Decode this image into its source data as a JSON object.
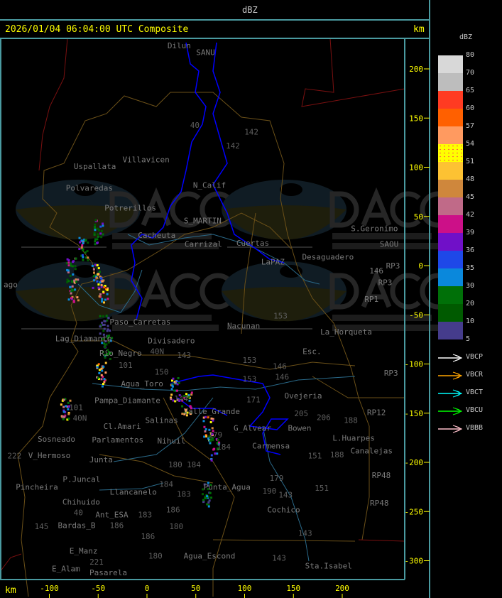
{
  "header": {
    "units_label": "dBZ"
  },
  "title": {
    "text": "2026/01/04 06:04:00 UTC Composite",
    "km_label": "km"
  },
  "x_axis": {
    "label": "km",
    "ticks": [
      -100,
      -50,
      0,
      50,
      100,
      150,
      200
    ]
  },
  "y_axis": {
    "label": "km",
    "ticks": [
      200,
      150,
      100,
      50,
      0,
      -50,
      -100,
      -150,
      -200,
      -250,
      -300
    ]
  },
  "legend": {
    "title": "dBZ",
    "labels": [
      "80",
      "70",
      "65",
      "60",
      "57",
      "54",
      "51",
      "48",
      "45",
      "42",
      "39",
      "36",
      "35",
      "30",
      "20",
      "10",
      "5"
    ],
    "colors": [
      "#d8d8d8",
      "#bdbdbd",
      "#ff3b22",
      "#ff6000",
      "#ff9a60",
      "#ffff00",
      "#fdc233",
      "#cf873c",
      "#c06a88",
      "#cc1088",
      "#7010c8",
      "#1e48e8",
      "#0a88dc",
      "#007008",
      "#005a00",
      "#453c8c"
    ],
    "tracks": [
      {
        "name": "VBCP",
        "color": "#ffffff"
      },
      {
        "name": "VBCR",
        "color": "#ffa500"
      },
      {
        "name": "VBCT",
        "color": "#00ffff"
      },
      {
        "name": "VBCU",
        "color": "#00ff00"
      },
      {
        "name": "VBBB",
        "color": "#ffc0cb"
      }
    ]
  },
  "watermark": {
    "logo_text": "DACC",
    "line1": "Dirección de Agricultura",
    "line2": "y Contingencias Climáticas",
    "url": "http://www.contingencias.mendoza.gov.ar"
  },
  "places": [
    {
      "name": "Dilun",
      "x": 33,
      "y": 226
    },
    {
      "name": "SANU",
      "x": 60,
      "y": 217
    },
    {
      "name": "Villavicen",
      "x": -1,
      "y": 108
    },
    {
      "name": "Uspallata",
      "x": -33,
      "y": 101
    },
    {
      "name": "Polvaredas",
      "x": -59,
      "y": 79
    },
    {
      "name": "Potrerillos",
      "x": -17,
      "y": 59
    },
    {
      "name": "N_Calif",
      "x": 64,
      "y": 82
    },
    {
      "name": "S_MARTIN",
      "x": 57,
      "y": 46
    },
    {
      "name": "Cacheuta",
      "x": 10,
      "y": 31
    },
    {
      "name": "Carrizal",
      "x": 17,
      "y": 22
    },
    {
      "name": "Cuertas",
      "x": 88,
      "y": 23
    },
    {
      "name": "LaPAZ",
      "x": 129,
      "y": 4
    },
    {
      "name": "Desaguadero",
      "x": 165,
      "y": 9
    },
    {
      "name": "S.Geronimo",
      "x": 233,
      "y": 38
    },
    {
      "name": "SAOU",
      "x": 248,
      "y": 22
    },
    {
      "name": "RP3",
      "x": 252,
      "y": 0
    },
    {
      "name": "RP3",
      "x": 244,
      "y": -17
    },
    {
      "name": "RP1",
      "x": 230,
      "y": -34
    },
    {
      "name": "146",
      "x": 235,
      "y": -5
    },
    {
      "name": "ago",
      "x": -146,
      "y": -19
    },
    {
      "name": "Paso_Carretas",
      "x": -7,
      "y": -57
    },
    {
      "name": "Nacunan",
      "x": 99,
      "y": -61
    },
    {
      "name": "La_Horqueta",
      "x": 204,
      "y": -67
    },
    {
      "name": "Esc.",
      "x": 169,
      "y": -87
    },
    {
      "name": "Divisadero",
      "x": 25,
      "y": -76
    },
    {
      "name": "Lag_Diamante",
      "x": -65,
      "y": -74
    },
    {
      "name": "Rio_Negro",
      "x": -27,
      "y": -81
    },
    {
      "name": "Agua_Toro",
      "x": -5,
      "y": -120
    },
    {
      "name": "Pampa_Diamante",
      "x": -20,
      "y": -137
    },
    {
      "name": "Salinas",
      "x": 15,
      "y": -157
    },
    {
      "name": "Valle_Grande",
      "x": 46,
      "y": -148
    },
    {
      "name": "Cl.Amari",
      "x": -5,
      "y": -163
    },
    {
      "name": "Parlamentos",
      "x": -30,
      "y": -169
    },
    {
      "name": "Sosneado",
      "x": -52,
      "y": -176
    },
    {
      "name": "Nihuil",
      "x": 25,
      "y": -178
    },
    {
      "name": "V_Hermoso",
      "x": -100,
      "y": -185
    },
    {
      "name": "Junta",
      "x": -47,
      "y": -197
    },
    {
      "name": "P.Juncal",
      "x": -67,
      "y": -217
    },
    {
      "name": "Pincheira",
      "x": -72,
      "y": -225
    },
    {
      "name": "Llancanelo",
      "x": -14,
      "y": -230
    },
    {
      "name": "Chihuido",
      "x": -47,
      "y": -240
    },
    {
      "name": "Ant_ESA",
      "x": -36,
      "y": -253
    },
    {
      "name": "Bardas_B",
      "x": -72,
      "y": -264
    },
    {
      "name": "E_Manz",
      "x": -65,
      "y": -290
    },
    {
      "name": "E_Alam",
      "x": -83,
      "y": -308
    },
    {
      "name": "Pasarela",
      "x": -60,
      "y": -313
    },
    {
      "name": "Agua_Escond",
      "x": 64,
      "y": -295
    },
    {
      "name": "Punta_Agua",
      "x": 82,
      "y": -225
    },
    {
      "name": "G_Alvear",
      "x": 108,
      "y": -165
    },
    {
      "name": "Bowen",
      "x": 136,
      "y": -165
    },
    {
      "name": "Carmensa",
      "x": 127,
      "y": -183
    },
    {
      "name": "Ovejeria",
      "x": 160,
      "y": -132
    },
    {
      "name": "L.Huarpes",
      "x": 171,
      "y": -175
    },
    {
      "name": "Canalejas",
      "x": 230,
      "y": -188
    },
    {
      "name": "Cochico",
      "x": 140,
      "y": -248
    },
    {
      "name": "Sta.Isabel",
      "x": 186,
      "y": -305
    },
    {
      "name": "RP3",
      "x": 250,
      "y": -109
    },
    {
      "name": "RP12",
      "x": 235,
      "y": -149
    },
    {
      "name": "RP48",
      "x": 240,
      "y": -213
    },
    {
      "name": "RP48",
      "x": 238,
      "y": -241
    }
  ],
  "routes": [
    {
      "name": "40",
      "x": 49,
      "y": 143
    },
    {
      "name": "142",
      "x": 107,
      "y": 136
    },
    {
      "name": "142",
      "x": 88,
      "y": 122
    },
    {
      "name": "153",
      "x": 96,
      "y": -51
    },
    {
      "name": "40N",
      "x": -10,
      "y": -87
    },
    {
      "name": "143",
      "x": 38,
      "y": -91
    },
    {
      "name": "101",
      "x": -22,
      "y": -101
    },
    {
      "name": "150",
      "x": 15,
      "y": -108
    },
    {
      "name": "153",
      "x": 105,
      "y": -96
    },
    {
      "name": "146",
      "x": 136,
      "y": -102
    },
    {
      "name": "153",
      "x": 105,
      "y": -115
    },
    {
      "name": "146",
      "x": 118,
      "y": -113
    },
    {
      "name": "171",
      "x": 109,
      "y": -136
    },
    {
      "name": "205",
      "x": 158,
      "y": -150
    },
    {
      "name": "206",
      "x": 181,
      "y": -154
    },
    {
      "name": "188",
      "x": 168,
      "y": -165
    },
    {
      "name": "151",
      "x": 172,
      "y": -193
    },
    {
      "name": "151",
      "x": 179,
      "y": -226
    },
    {
      "name": "188",
      "x": 215,
      "y": -184
    },
    {
      "name": "143",
      "x": 142,
      "y": -233
    },
    {
      "name": "143",
      "x": 162,
      "y": -272
    },
    {
      "name": "143",
      "x": 176,
      "y": -297
    },
    {
      "name": "179",
      "x": 92,
      "y": -216
    },
    {
      "name": "190",
      "x": 105,
      "y": -221
    },
    {
      "name": "184",
      "x": 99,
      "y": -184
    },
    {
      "name": "184",
      "x": 48,
      "y": -202
    },
    {
      "name": "180",
      "x": 29,
      "y": -202
    },
    {
      "name": "184",
      "x": -21,
      "y": -222
    },
    {
      "name": "183",
      "x": -3,
      "y": -232
    },
    {
      "name": "183",
      "x": -2,
      "y": -253
    },
    {
      "name": "186",
      "x": -31,
      "y": -248
    },
    {
      "name": "186",
      "x": -14,
      "y": -248
    },
    {
      "name": "180",
      "x": 30,
      "y": -265
    },
    {
      "name": "186",
      "x": 1,
      "y": -275
    },
    {
      "name": "180",
      "x": 29,
      "y": -295
    },
    {
      "name": "145",
      "x": -108,
      "y": -265
    },
    {
      "name": "221",
      "x": -72,
      "y": -301
    },
    {
      "name": "222",
      "x": -95,
      "y": -193
    },
    {
      "name": "40",
      "x": -50,
      "y": -251
    },
    {
      "name": "144",
      "x": 35,
      "y": -143
    },
    {
      "name": "101",
      "x": -32,
      "y": -144
    },
    {
      "name": "40N",
      "x": -28,
      "y": -155
    },
    {
      "name": "179",
      "x": 70,
      "y": -172
    }
  ],
  "echo_clusters": [
    {
      "x": -66,
      "y": 18,
      "dbz": 42
    },
    {
      "x": -50,
      "y": 35,
      "dbz": 39
    },
    {
      "x": -52,
      "y": -10,
      "dbz": 48
    },
    {
      "x": -46,
      "y": -25,
      "dbz": 54
    },
    {
      "x": -76,
      "y": -25,
      "dbz": 51
    },
    {
      "x": -44,
      "y": -62,
      "dbz": 20
    },
    {
      "x": -42,
      "y": -82,
      "dbz": 30
    },
    {
      "x": -48,
      "y": -110,
      "dbz": 54
    },
    {
      "x": -84,
      "y": -144,
      "dbz": 51
    },
    {
      "x": 28,
      "y": -125,
      "dbz": 48
    },
    {
      "x": 40,
      "y": -140,
      "dbz": 51
    },
    {
      "x": 62,
      "y": -165,
      "dbz": 54
    },
    {
      "x": 68,
      "y": -185,
      "dbz": 42
    },
    {
      "x": 60,
      "y": -232,
      "dbz": 30
    },
    {
      "x": -78,
      "y": -4,
      "dbz": 39
    }
  ]
}
